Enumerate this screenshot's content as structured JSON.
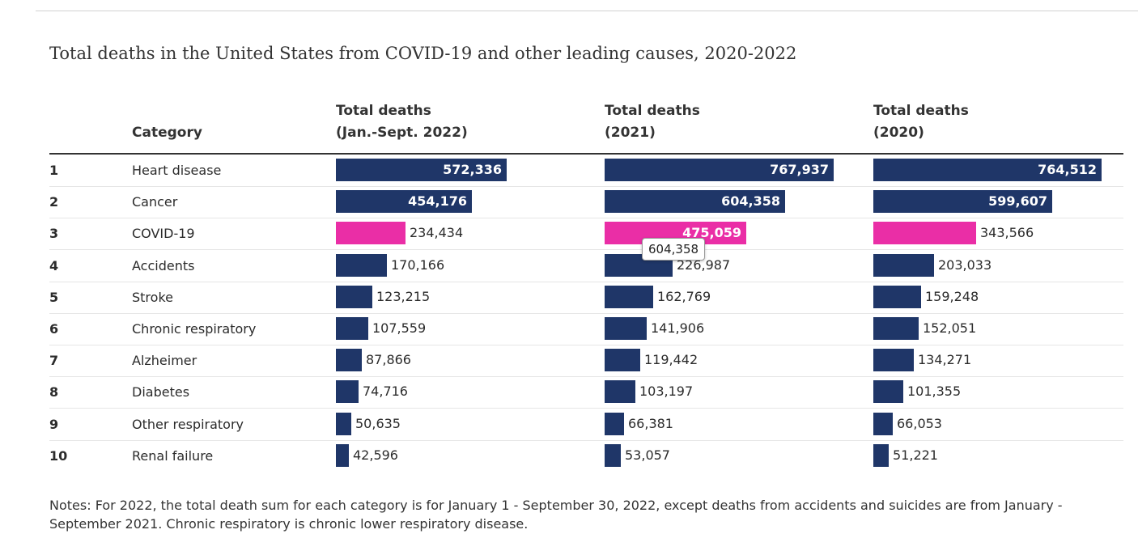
{
  "chart_data": {
    "type": "bar",
    "title": "Total deaths in the United States from COVID-19 and other leading causes, 2020-2022",
    "column_headers": {
      "category": "Category",
      "col_2022": [
        "Total deaths",
        "(Jan.-Sept. 2022)"
      ],
      "col_2021": [
        "Total deaths",
        "(2021)"
      ],
      "col_2020": [
        "Total deaths",
        "(2020)"
      ]
    },
    "ranks": [
      "1",
      "2",
      "3",
      "4",
      "5",
      "6",
      "7",
      "8",
      "9",
      "10"
    ],
    "categories": [
      "Heart disease",
      "Cancer",
      "COVID-19",
      "Accidents",
      "Stroke",
      "Chronic respiratory",
      "Alzheimer",
      "Diabetes",
      "Other respiratory",
      "Renal failure"
    ],
    "highlight_category": "COVID-19",
    "series": [
      {
        "name": "Total deaths (Jan.-Sept. 2022)",
        "values": [
          572336,
          454176,
          234434,
          170166,
          123215,
          107559,
          87866,
          74716,
          50635,
          42596
        ],
        "labels": [
          "572,336",
          "454,176",
          "234,434",
          "170,166",
          "123,215",
          "107,559",
          "87,866",
          "74,716",
          "50,635",
          "42,596"
        ]
      },
      {
        "name": "Total deaths (2021)",
        "values": [
          767937,
          604358,
          475059,
          226987,
          162769,
          141906,
          119442,
          103197,
          66381,
          53057
        ],
        "labels": [
          "767,937",
          "604,358",
          "475,059",
          "226,987",
          "162,769",
          "141,906",
          "119,442",
          "103,197",
          "66,381",
          "53,057"
        ]
      },
      {
        "name": "Total deaths (2020)",
        "values": [
          764512,
          599607,
          343566,
          203033,
          159248,
          152051,
          134271,
          101355,
          66053,
          51221
        ],
        "labels": [
          "764,512",
          "599,607",
          "343,566",
          "203,033",
          "159,248",
          "152,051",
          "134,271",
          "101,355",
          "66,053",
          "51,221"
        ]
      }
    ],
    "tooltip": "604,358",
    "colors": {
      "bar": "#1f3668",
      "highlight": "#ea2ea6"
    },
    "notes": "Notes: For 2022, the total death sum for each category is for January 1 - September 30, 2022, except deaths from accidents and suicides are from January - September 2021. Chronic respiratory is chronic lower respiratory disease."
  }
}
